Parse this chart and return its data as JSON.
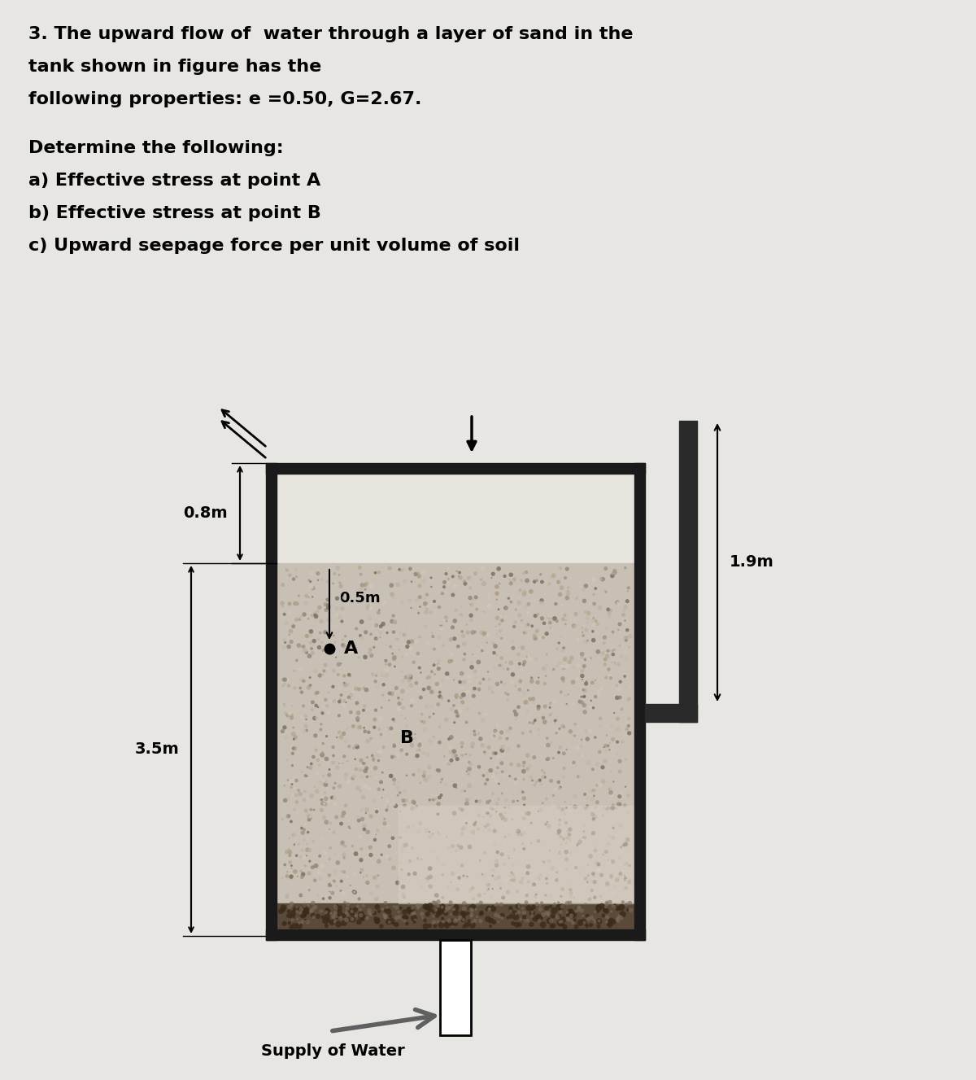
{
  "title_line1": "3. The upward flow of  water through a layer of sand in the",
  "title_line2": "tank shown in figure has the",
  "title_line3": "following properties: e =0.50, G=2.67.",
  "q_line1": "Determine the following:",
  "q_line2": "a) Effective stress at point A",
  "q_line3": "b) Effective stress at point B",
  "q_line4": "c) Upward seepage force per unit volume of soil",
  "bg_color": "#e8e6e2",
  "label_08m": "0.8m",
  "label_35m": "3.5m",
  "label_05m": "0.5m",
  "label_19m": "1.9m",
  "label_A": "A",
  "label_B": "B",
  "supply_label": "Supply of Water",
  "wall_color": "#1a1a1a",
  "sand_color": "#c8c0b4",
  "gravel_color": "#5a4a3a",
  "pipe_color": "#2a2a2a",
  "water_color": "#e8e4de"
}
